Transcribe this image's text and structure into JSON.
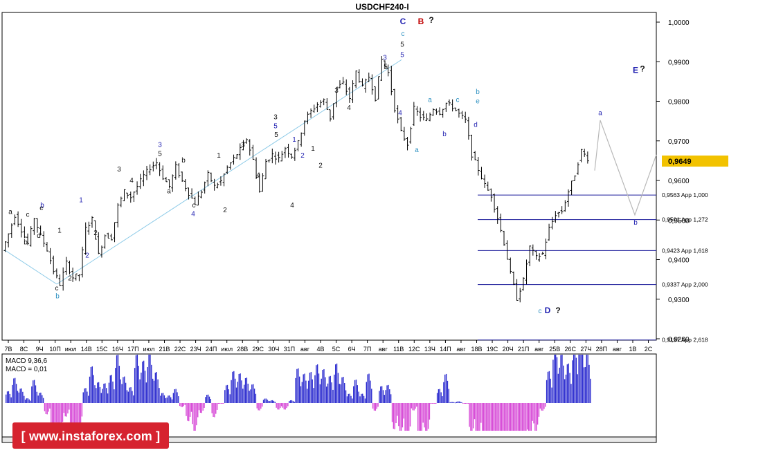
{
  "title": "USDCHF240-I",
  "colors": {
    "blue": "#1f1fb0",
    "teal": "#2a8fc0",
    "black": "#111111",
    "red": "#c00000",
    "magenta": "#cc33cc",
    "macd_pos": "#2b2bcf",
    "macd_neg": "#d646d6",
    "fib_line": "#1a1a9a",
    "price_box": "#f2c200"
  },
  "price_axis": {
    "ticks": [
      "1,0000",
      "0,9900",
      "0,9800",
      "0,9700",
      "0,9600",
      "0,9500",
      "0,9400",
      "0,9300",
      "0,9200"
    ],
    "current": "0,9649"
  },
  "time_axis": {
    "labels": [
      "7В",
      "8С",
      "9Ч",
      "10П",
      "июл",
      "14В",
      "15С",
      "16Ч",
      "17П",
      "июл",
      "21В",
      "22С",
      "23Ч",
      "24П",
      "июл",
      "28В",
      "29С",
      "30Ч",
      "31П",
      "авг",
      "4В",
      "5С",
      "6Ч",
      "7П",
      "авг",
      "11В",
      "12С",
      "13Ч",
      "14П",
      "авг",
      "18В",
      "19С",
      "20Ч",
      "21П",
      "авг",
      "25В",
      "26С",
      "27Ч",
      "28П",
      "авг",
      "1В",
      "2С"
    ]
  },
  "fib_levels": [
    {
      "label": "0,9563 App 1,000",
      "price": 0.9563
    },
    {
      "label": "0,9501 App 1,272",
      "price": 0.9501
    },
    {
      "label": "0,9423 App 1,618",
      "price": 0.9423
    },
    {
      "label": "0,9337 App 2,000",
      "price": 0.9337
    },
    {
      "label": "0,9197 App 2,618",
      "price": 0.9197
    }
  ],
  "macd_labels": {
    "line1": "MACD 9,36,6",
    "line2": "MACD = 0,01"
  },
  "watermark": "[ www.instaforex.com ]",
  "chart_data": {
    "type": "candlestick",
    "symbol": "USDCHF",
    "timeframe": "H4",
    "ylim": [
      0.9197,
      1.0005
    ],
    "price_path": [
      0.9423,
      0.9465,
      0.9512,
      0.9475,
      0.944,
      0.9505,
      0.946,
      0.9425,
      0.9372,
      0.9338,
      0.9392,
      0.9355,
      0.9362,
      0.9478,
      0.9502,
      0.9412,
      0.9462,
      0.9455,
      0.9535,
      0.9572,
      0.9558,
      0.9585,
      0.9612,
      0.9632,
      0.9645,
      0.9608,
      0.9585,
      0.9635,
      0.9598,
      0.9568,
      0.9542,
      0.9573,
      0.9615,
      0.9585,
      0.9598,
      0.9632,
      0.9655,
      0.9678,
      0.9705,
      0.9652,
      0.9572,
      0.9648,
      0.9665,
      0.9655,
      0.9682,
      0.9662,
      0.9695,
      0.9752,
      0.9775,
      0.9792,
      0.9802,
      0.9758,
      0.9835,
      0.9845,
      0.9808,
      0.9875,
      0.9835,
      0.9862,
      0.9808,
      0.9905,
      0.9872,
      0.9782,
      0.9722,
      0.9692,
      0.9782,
      0.9762,
      0.9752,
      0.9782,
      0.9772,
      0.9795,
      0.9786,
      0.9768,
      0.9752,
      0.9665,
      0.9628,
      0.9588,
      0.9562,
      0.9505,
      0.9442,
      0.9365,
      0.9302,
      0.9348,
      0.9432,
      0.9405,
      0.9415,
      0.9478,
      0.9515,
      0.9522,
      0.9572,
      0.9615,
      0.9675,
      0.9655
    ],
    "forecast_path": [
      0.9625,
      0.9752,
      0.9513,
      0.9665
    ],
    "current_price": 0.9649,
    "fib_levels": [
      0.9563,
      0.9501,
      0.9423,
      0.9337,
      0.9197
    ],
    "wave_labels": [
      {
        "text": "a",
        "price": 0.9515,
        "color": "black"
      },
      {
        "text": "b",
        "price": 0.9438,
        "color": "black"
      },
      {
        "text": "c",
        "price": 0.9508,
        "color": "black"
      },
      {
        "text": "d",
        "price": 0.9455,
        "color": "black"
      },
      {
        "text": "e",
        "price": 0.9525,
        "color": "black"
      },
      {
        "text": "b",
        "price": 0.9532,
        "color": "blue"
      },
      {
        "text": "1",
        "price": 0.9468,
        "color": "black"
      },
      {
        "text": "1",
        "price": 0.9545,
        "color": "blue"
      },
      {
        "text": "2",
        "price": 0.9348,
        "color": "black"
      },
      {
        "text": "2",
        "price": 0.9405,
        "color": "blue"
      },
      {
        "text": "2",
        "price": 0.9462,
        "color": "black"
      },
      {
        "text": "c",
        "price": 0.9322,
        "color": "black"
      },
      {
        "text": "b",
        "price": 0.9302,
        "color": "teal"
      },
      {
        "text": "3",
        "price": 0.9623,
        "color": "black"
      },
      {
        "text": "4",
        "price": 0.9595,
        "color": "black"
      },
      {
        "text": "3",
        "price": 0.9685,
        "color": "blue"
      },
      {
        "text": "5",
        "price": 0.9662,
        "color": "black"
      },
      {
        "text": "b",
        "price": 0.9645,
        "color": "black"
      },
      {
        "text": "a",
        "price": 0.9568,
        "color": "black"
      },
      {
        "text": "c",
        "price": 0.9532,
        "color": "black"
      },
      {
        "text": "4",
        "price": 0.951,
        "color": "blue"
      },
      {
        "text": "1",
        "price": 0.9658,
        "color": "black"
      },
      {
        "text": "2",
        "price": 0.952,
        "color": "black"
      },
      {
        "text": "3",
        "price": 0.9685,
        "color": "black"
      },
      {
        "text": "4",
        "price": 0.9608,
        "color": "black"
      },
      {
        "text": "3",
        "price": 0.9755,
        "color": "black"
      },
      {
        "text": "5",
        "price": 0.9732,
        "color": "blue"
      },
      {
        "text": "5",
        "price": 0.971,
        "color": "black"
      },
      {
        "text": "4",
        "price": 0.9532,
        "color": "black"
      },
      {
        "text": "1",
        "price": 0.9698,
        "color": "blue"
      },
      {
        "text": "2",
        "price": 0.9658,
        "color": "blue"
      },
      {
        "text": "1",
        "price": 0.9675,
        "color": "black"
      },
      {
        "text": "2",
        "price": 0.9632,
        "color": "black"
      },
      {
        "text": "3",
        "price": 0.9822,
        "color": "black"
      },
      {
        "text": "4",
        "price": 0.9778,
        "color": "black"
      },
      {
        "text": "3",
        "price": 0.9905,
        "color": "blue"
      },
      {
        "text": "5",
        "price": 0.9882,
        "color": "black"
      },
      {
        "text": "5",
        "price": 0.9938,
        "color": "black"
      },
      {
        "text": "5",
        "price": 0.9912,
        "color": "blue"
      },
      {
        "text": "c",
        "price": 0.9965,
        "color": "teal"
      },
      {
        "text": "C",
        "price": 0.9995,
        "color": "blue"
      },
      {
        "text": "B",
        "price": 0.9995,
        "color": "red"
      },
      {
        "text": "?",
        "price": 0.9998,
        "color": "black"
      },
      {
        "text": "4",
        "price": 0.9765,
        "color": "blue"
      },
      {
        "text": "a",
        "price": 0.9672,
        "color": "teal"
      },
      {
        "text": "a",
        "price": 0.9798,
        "color": "teal"
      },
      {
        "text": "b",
        "price": 0.9712,
        "color": "blue"
      },
      {
        "text": "c",
        "price": 0.9798,
        "color": "teal"
      },
      {
        "text": "b",
        "price": 0.9818,
        "color": "teal"
      },
      {
        "text": "e",
        "price": 0.9795,
        "color": "teal"
      },
      {
        "text": "d",
        "price": 0.9735,
        "color": "blue"
      },
      {
        "text": "E",
        "price": 0.9872,
        "color": "blue"
      },
      {
        "text": "?",
        "price": 0.9875,
        "color": "black"
      },
      {
        "text": "a",
        "price": 0.9765,
        "color": "blue"
      },
      {
        "text": "b",
        "price": 0.9488,
        "color": "blue"
      },
      {
        "text": "c",
        "price": 0.9265,
        "color": "teal"
      },
      {
        "text": "D",
        "price": 0.9265,
        "color": "blue"
      },
      {
        "text": "?",
        "price": 0.9265,
        "color": "black"
      }
    ],
    "macd": {
      "fast": 9,
      "slow": 36,
      "signal": 6,
      "value": 0.01
    }
  }
}
